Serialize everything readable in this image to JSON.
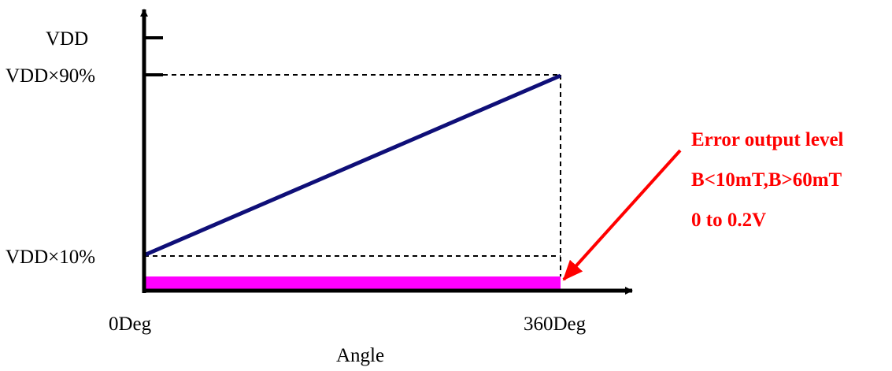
{
  "y_axis": {
    "labels": [
      "VDD",
      "VDD×90%",
      "VDD×10%"
    ]
  },
  "x_axis": {
    "tick_start": "0Deg",
    "tick_end": "360Deg",
    "title": "Angle"
  },
  "annotation": {
    "lines": [
      "Error output level",
      "B<10mT,B>60mT",
      "0 to 0.2V"
    ]
  },
  "colors": {
    "axes": "#000000",
    "output_line": "#0f0f78",
    "error_band": "#ff00ff",
    "annotation": "#ff0000"
  }
}
